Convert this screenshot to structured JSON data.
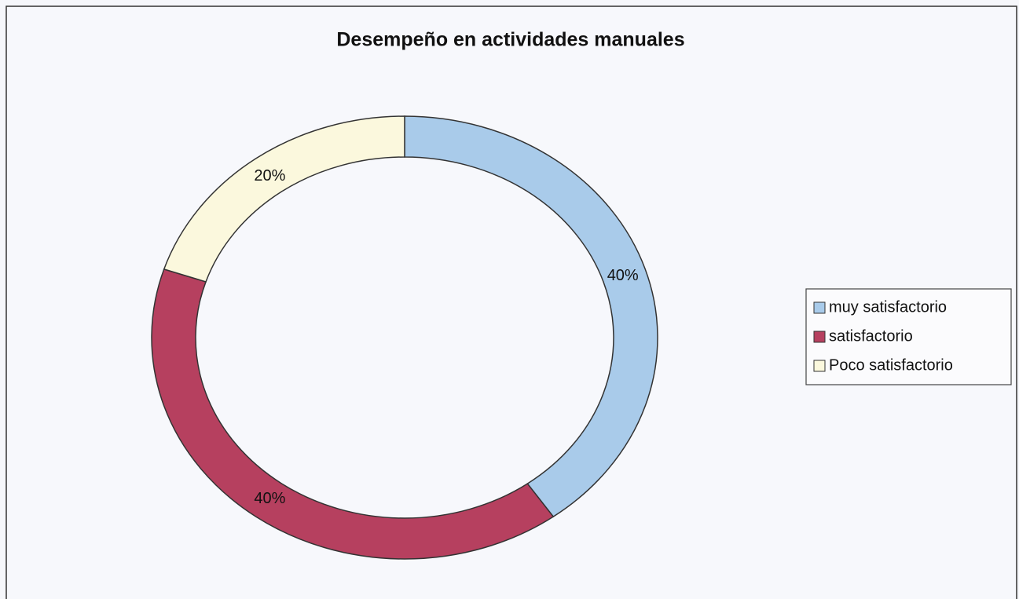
{
  "chart_data": {
    "type": "donut",
    "title": "Desempeño en actividades manuales",
    "categories": [
      "muy satisfactorio",
      "satisfactorio",
      "Poco satisfactorio"
    ],
    "values": [
      40,
      40,
      20
    ],
    "value_labels": [
      "40%",
      "40%",
      "20%"
    ],
    "colors": [
      "#a9cbea",
      "#b6405f",
      "#fbf8dd"
    ],
    "legend": "right"
  }
}
